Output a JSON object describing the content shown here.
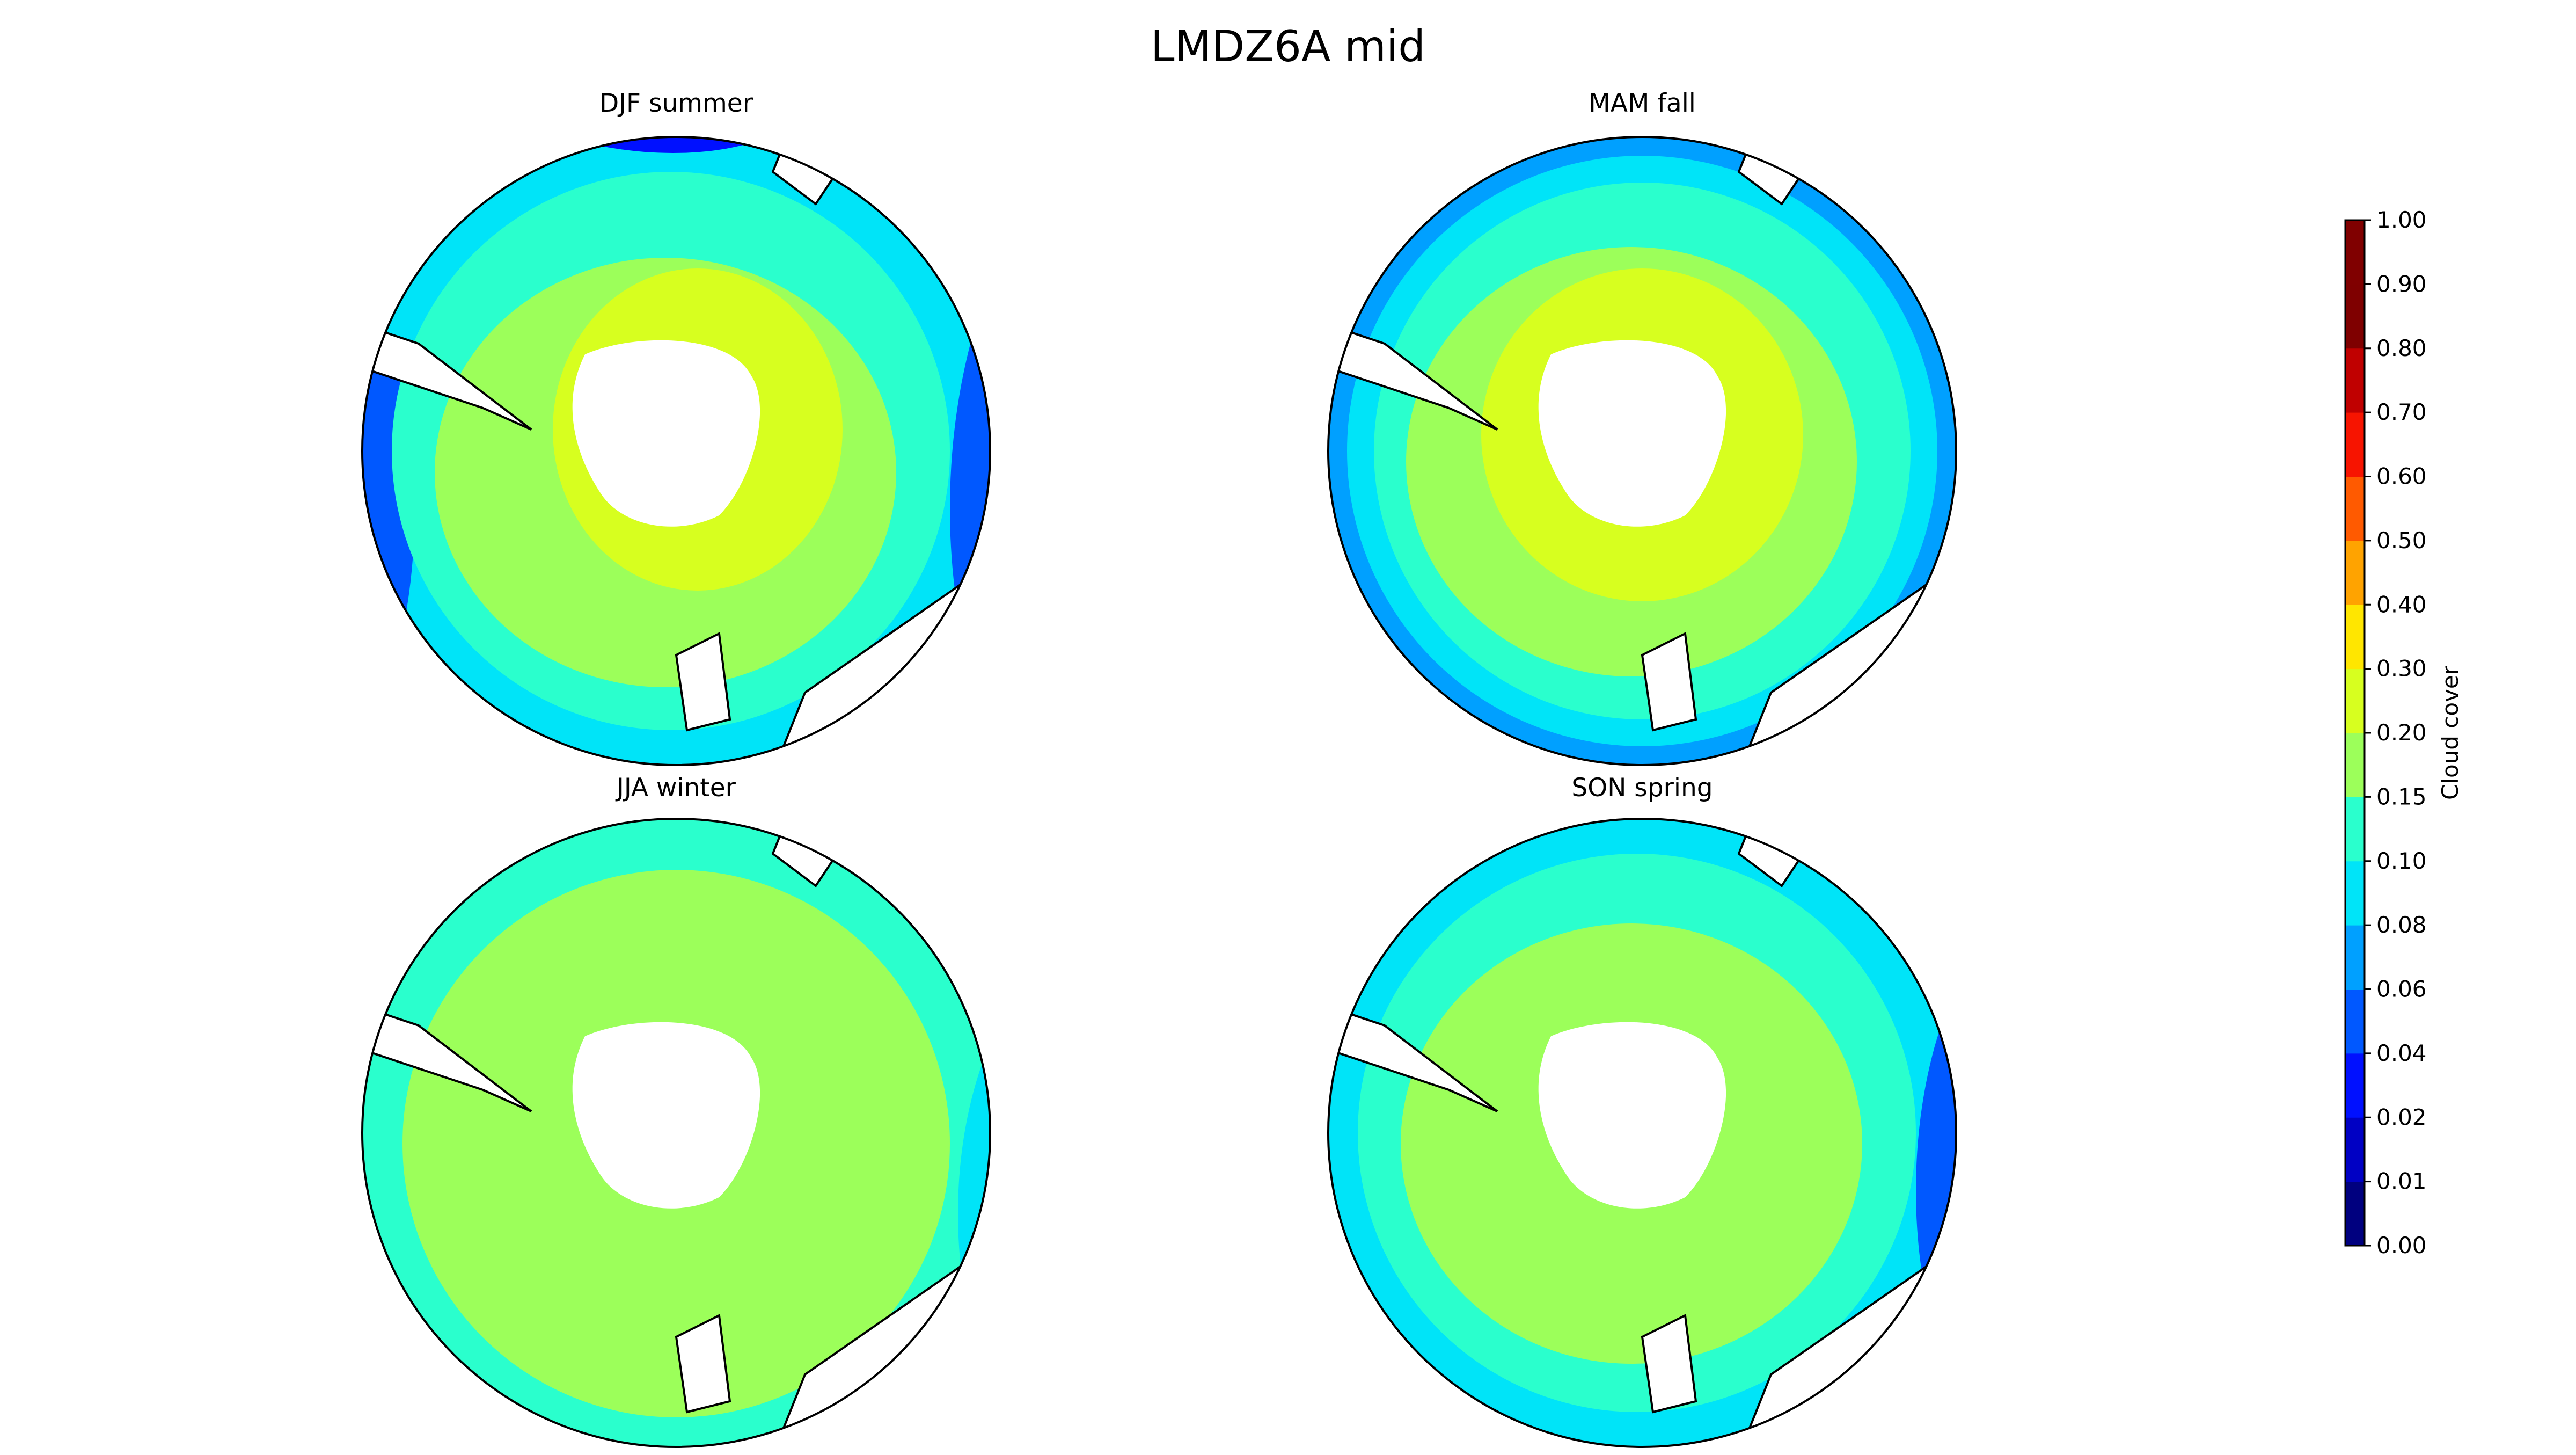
{
  "figure": {
    "title": "LMDZ6A mid"
  },
  "panels": [
    {
      "title": "DJF summer"
    },
    {
      "title": "MAM fall"
    },
    {
      "title": "JJA winter"
    },
    {
      "title": "SON spring"
    }
  ],
  "colorbar": {
    "label": "Cloud cover",
    "ticks": [
      "0.00",
      "0.01",
      "0.02",
      "0.04",
      "0.06",
      "0.08",
      "0.10",
      "0.15",
      "0.20",
      "0.30",
      "0.40",
      "0.50",
      "0.60",
      "0.70",
      "0.80",
      "0.90",
      "1.00"
    ],
    "colors": [
      "#00007f",
      "#0000c4",
      "#0010ff",
      "#0058ff",
      "#00a0ff",
      "#00e4f8",
      "#2affcd",
      "#9cff5a",
      "#d7ff1f",
      "#ffe600",
      "#ffa300",
      "#ff5a00",
      "#f71400",
      "#c00000",
      "#7f0000",
      "#800000"
    ]
  },
  "chart_data": {
    "type": "heatmap",
    "title": "LMDZ6A mid",
    "colorbar_label": "Cloud cover",
    "levels": [
      0.0,
      0.01,
      0.02,
      0.04,
      0.06,
      0.08,
      0.1,
      0.15,
      0.2,
      0.3,
      0.4,
      0.5,
      0.6,
      0.7,
      0.8,
      0.9,
      1.0
    ],
    "panels": [
      "DJF summer",
      "MAM fall",
      "JJA winter",
      "SON spring"
    ]
  }
}
